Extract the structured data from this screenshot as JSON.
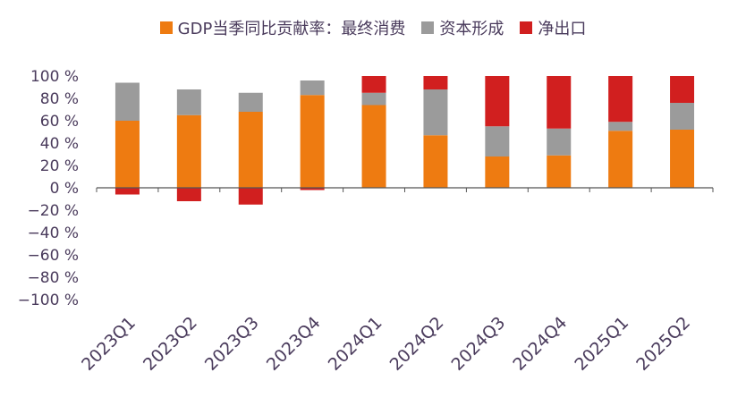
{
  "legend": {
    "items": [
      {
        "label": "GDP当季同比贡献率：最终消费",
        "color": "#ee7b11"
      },
      {
        "label": "资本形成",
        "color": "#9b9b9b"
      },
      {
        "label": "净出口",
        "color": "#d11f1f"
      }
    ]
  },
  "chart_data": {
    "type": "bar",
    "stacked": true,
    "categories": [
      "2023Q1",
      "2023Q2",
      "2023Q3",
      "2023Q4",
      "2024Q1",
      "2024Q2",
      "2024Q3",
      "2024Q4",
      "2025Q1",
      "2025Q2"
    ],
    "series": [
      {
        "name": "GDP当季同比贡献率：最终消费",
        "color": "#ee7b11",
        "values": [
          60,
          65,
          68,
          83,
          74,
          47,
          28,
          29,
          51,
          52
        ]
      },
      {
        "name": "资本形成",
        "color": "#9b9b9b",
        "values": [
          34,
          23,
          17,
          13,
          11,
          41,
          27,
          24,
          8,
          24
        ]
      },
      {
        "name": "净出口",
        "color": "#d11f1f",
        "values": [
          -6,
          -12,
          -15,
          -2,
          15,
          12,
          45,
          47,
          41,
          24
        ]
      }
    ],
    "yticks": [
      "100 %",
      "80 %",
      "60 %",
      "40 %",
      "20 %",
      "0 %",
      "−20 %",
      "−40 %",
      "−60 %",
      "−80 %",
      "−100 %"
    ],
    "ylim": [
      -100,
      100
    ],
    "legend_position": "top-center",
    "grid": false
  }
}
